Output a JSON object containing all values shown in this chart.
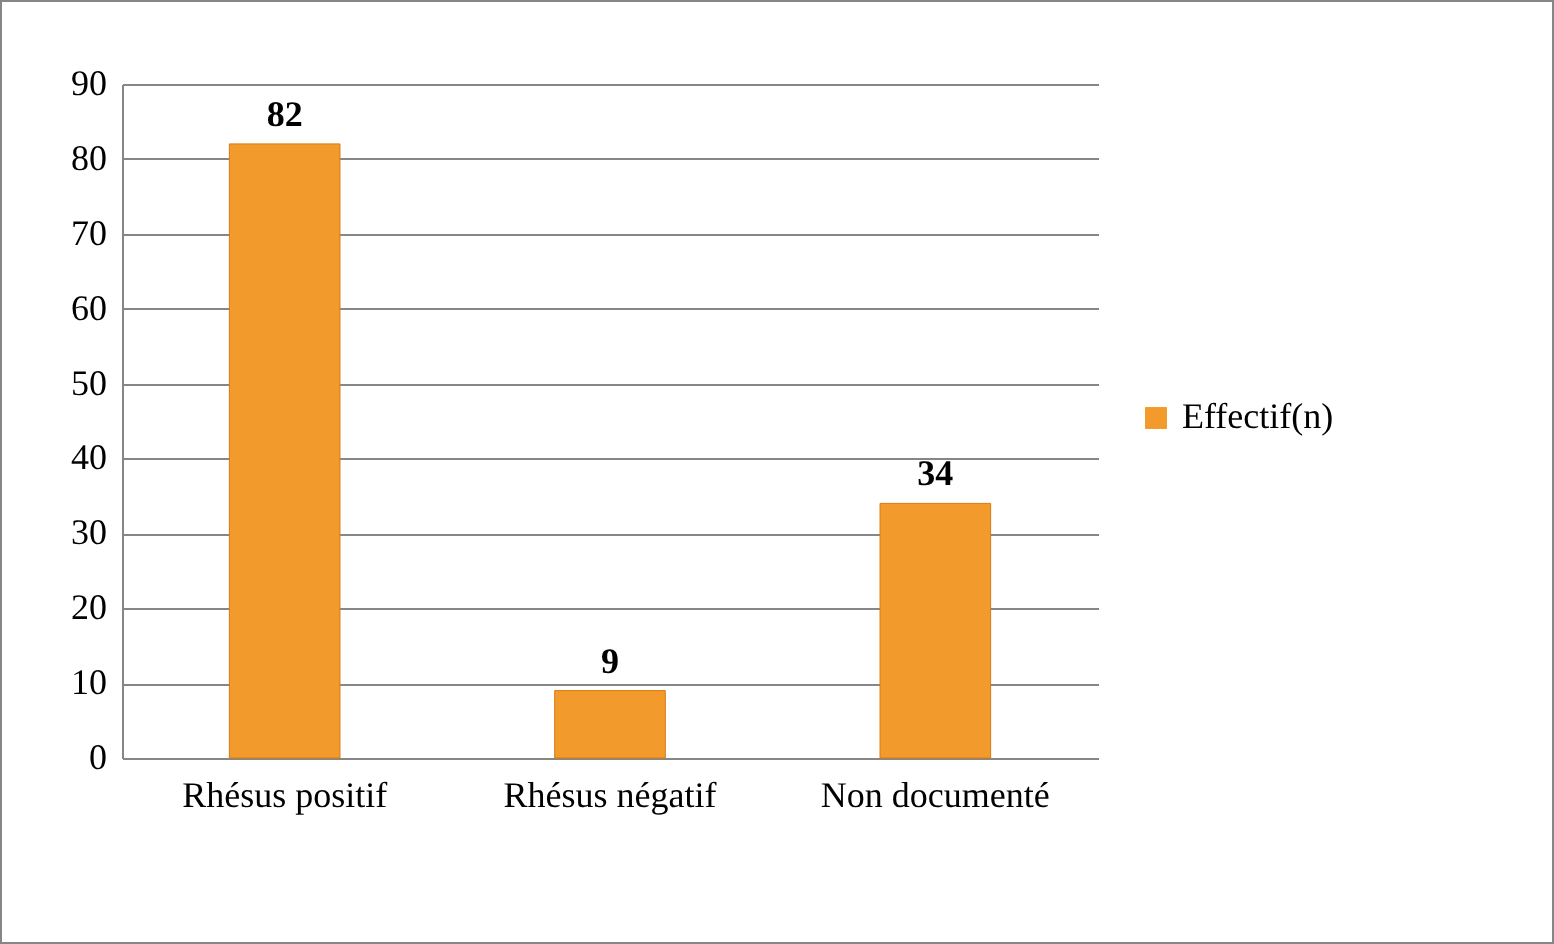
{
  "chart_data": {
    "type": "bar",
    "categories": [
      "Rhésus positif",
      "Rhésus négatif",
      "Non documenté"
    ],
    "series": [
      {
        "name": "Effectif(n)",
        "color": "#f39a2c",
        "values": [
          82,
          9,
          34
        ]
      }
    ],
    "ylim": [
      0,
      90
    ],
    "yticks": [
      0,
      10,
      20,
      30,
      40,
      50,
      60,
      70,
      80,
      90
    ],
    "grid": "y",
    "legend": "right",
    "data_labels": true
  }
}
